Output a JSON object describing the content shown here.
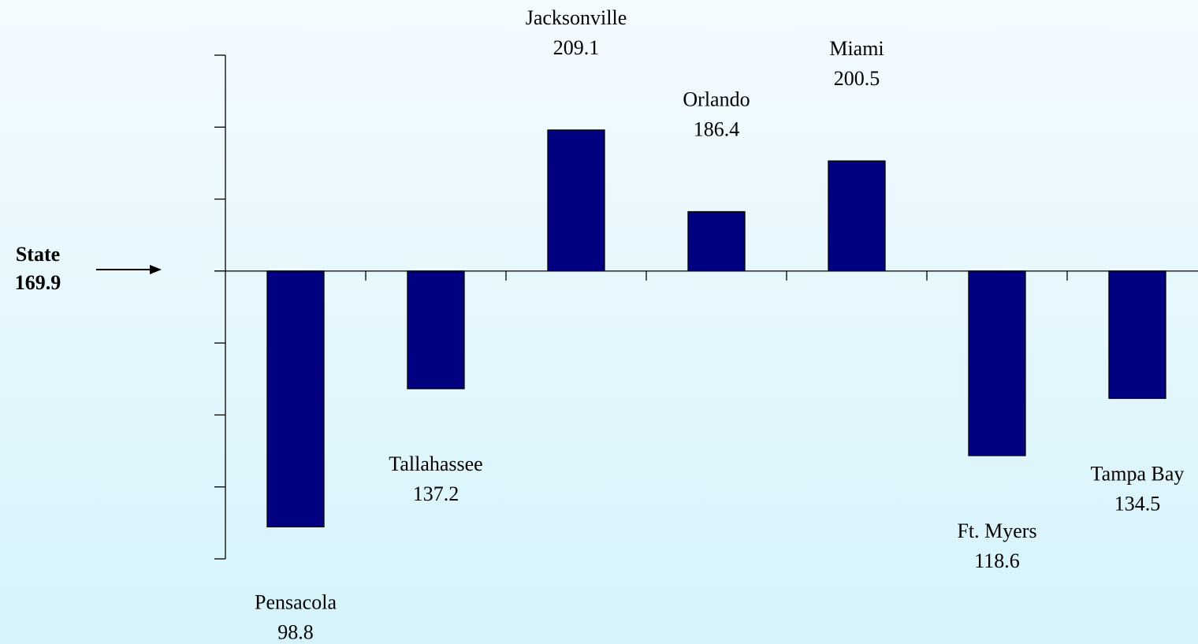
{
  "chart_data": {
    "type": "bar",
    "baseline_label": "State",
    "baseline": 169.9,
    "categories": [
      "Pensacola",
      "Tallahassee",
      "Jacksonville",
      "Orlando",
      "Miami",
      "Ft. Myers",
      "Tampa Bay"
    ],
    "values": [
      98.8,
      137.2,
      209.1,
      186.4,
      200.5,
      118.6,
      134.5
    ],
    "color": "#000080",
    "ylim": [
      89.9,
      229.9
    ],
    "yticks": [
      89.9,
      109.9,
      129.9,
      149.9,
      169.9,
      189.9,
      209.9,
      229.9
    ]
  }
}
